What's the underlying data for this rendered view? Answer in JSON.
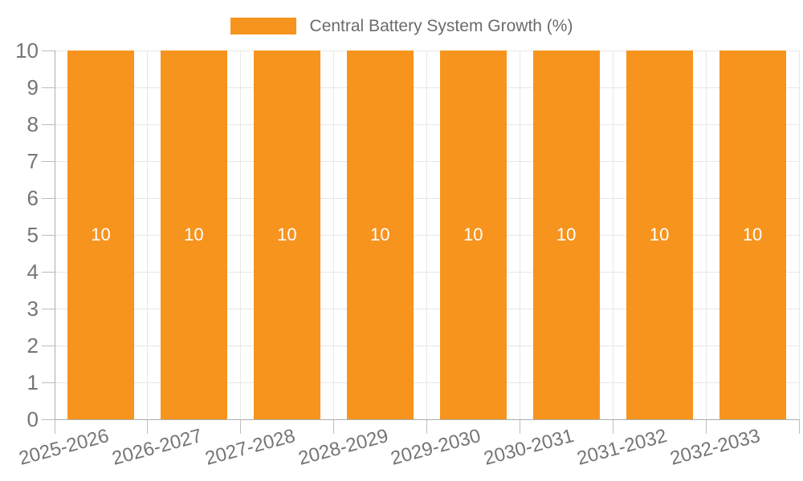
{
  "legend": {
    "label": "Central Battery System Growth (%)"
  },
  "chart_data": {
    "type": "bar",
    "title": "Central Battery System Growth (%)",
    "categories": [
      "2025-2026",
      "2026-2027",
      "2027-2028",
      "2028-2029",
      "2029-2030",
      "2030-2031",
      "2031-2032",
      "2032-2033"
    ],
    "values": [
      10,
      10,
      10,
      10,
      10,
      10,
      10,
      10
    ],
    "series_name": "Central Battery System Growth (%)",
    "xlabel": "",
    "ylabel": "",
    "ylim": [
      0,
      10
    ],
    "y_ticks": [
      0,
      1,
      2,
      3,
      4,
      5,
      6,
      7,
      8,
      9,
      10
    ],
    "grid": true,
    "legend_position": "top-center",
    "bar_label_format": "10"
  },
  "colors": {
    "bar": "#F7941E",
    "grid": "#E7E7E7",
    "axis": "#ADADAD",
    "tick": "#BDBDBD",
    "axis_label": "#757575",
    "legend_text": "#6B6B6B",
    "bar_label": "#FFFFFF",
    "background": "#FFFFFF"
  }
}
